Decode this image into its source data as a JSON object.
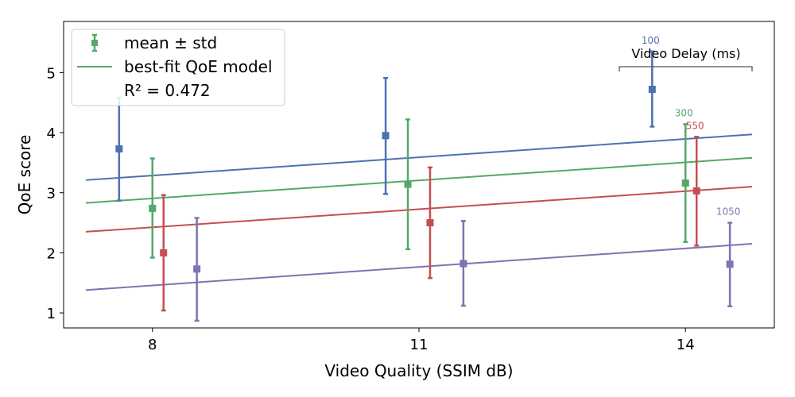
{
  "chart_data": {
    "type": "scatter",
    "xlabel": "Video Quality (SSIM dB)",
    "ylabel": "QoE score",
    "xlim": [
      7.0,
      15.0
    ],
    "ylim": [
      0.75,
      5.85
    ],
    "x_ticks": [
      8,
      11,
      14
    ],
    "y_ticks": [
      1,
      2,
      3,
      4,
      5
    ],
    "grid": false,
    "legend": {
      "placement": "top-left",
      "entries": [
        "mean ± std",
        "best-fit QoE model",
        "R² = 0.472"
      ]
    },
    "delay_group_label": "Video Delay (ms)",
    "fit_x_range": [
      7.25,
      14.75
    ],
    "series": [
      {
        "name": "100",
        "color": "#4c72b0",
        "points": [
          {
            "x": 7.625,
            "mean": 3.73,
            "lo": 2.87,
            "hi": 4.58
          },
          {
            "x": 10.625,
            "mean": 3.95,
            "lo": 2.98,
            "hi": 4.91
          },
          {
            "x": 13.625,
            "mean": 4.72,
            "lo": 4.1,
            "hi": 5.35
          }
        ],
        "fit": [
          3.21,
          3.97
        ]
      },
      {
        "name": "300",
        "color": "#55a868",
        "points": [
          {
            "x": 8.0,
            "mean": 2.74,
            "lo": 1.92,
            "hi": 3.57
          },
          {
            "x": 10.875,
            "mean": 3.14,
            "lo": 2.06,
            "hi": 4.22
          },
          {
            "x": 14.0,
            "mean": 3.16,
            "lo": 2.18,
            "hi": 4.14
          }
        ],
        "fit": [
          2.83,
          3.58
        ]
      },
      {
        "name": "550",
        "color": "#c44e52",
        "points": [
          {
            "x": 8.125,
            "mean": 2.0,
            "lo": 1.04,
            "hi": 2.96
          },
          {
            "x": 11.125,
            "mean": 2.5,
            "lo": 1.58,
            "hi": 3.42
          },
          {
            "x": 14.125,
            "mean": 3.03,
            "lo": 2.12,
            "hi": 3.93
          }
        ],
        "fit": [
          2.35,
          3.1
        ]
      },
      {
        "name": "1050",
        "color": "#8172b2",
        "points": [
          {
            "x": 8.5,
            "mean": 1.73,
            "lo": 0.87,
            "hi": 2.58
          },
          {
            "x": 11.5,
            "mean": 1.82,
            "lo": 1.12,
            "hi": 2.53
          },
          {
            "x": 14.5,
            "mean": 1.81,
            "lo": 1.11,
            "hi": 2.5
          }
        ],
        "fit": [
          1.38,
          2.15
        ]
      }
    ]
  }
}
